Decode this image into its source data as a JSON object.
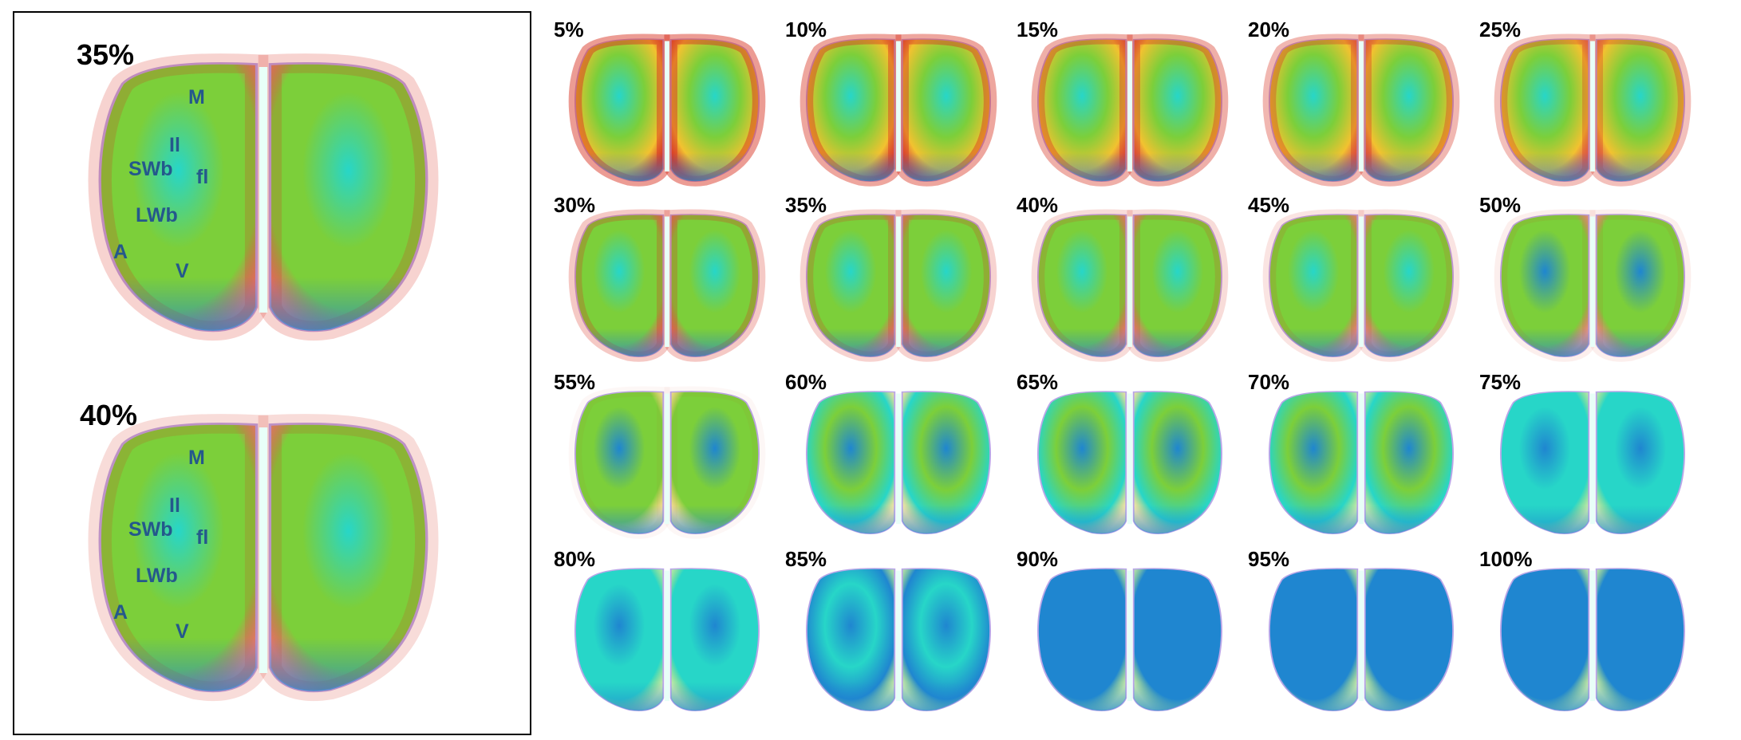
{
  "featured": [
    {
      "label": "35%",
      "intensity": 0.35,
      "regions": [
        "M",
        "Il",
        "SWb",
        "fl",
        "LWb",
        "A",
        "V"
      ]
    },
    {
      "label": "40%",
      "intensity": 0.4,
      "regions": [
        "M",
        "Il",
        "SWb",
        "fl",
        "LWb",
        "A",
        "V"
      ]
    }
  ],
  "thumbnails": [
    {
      "label": "5%",
      "intensity": 0.05
    },
    {
      "label": "10%",
      "intensity": 0.1
    },
    {
      "label": "15%",
      "intensity": 0.15
    },
    {
      "label": "20%",
      "intensity": 0.2
    },
    {
      "label": "25%",
      "intensity": 0.25
    },
    {
      "label": "30%",
      "intensity": 0.3
    },
    {
      "label": "35%",
      "intensity": 0.35
    },
    {
      "label": "40%",
      "intensity": 0.4
    },
    {
      "label": "45%",
      "intensity": 0.45
    },
    {
      "label": "50%",
      "intensity": 0.5
    },
    {
      "label": "55%",
      "intensity": 0.55
    },
    {
      "label": "60%",
      "intensity": 0.6
    },
    {
      "label": "65%",
      "intensity": 0.65
    },
    {
      "label": "70%",
      "intensity": 0.7
    },
    {
      "label": "75%",
      "intensity": 0.75
    },
    {
      "label": "80%",
      "intensity": 0.8
    },
    {
      "label": "85%",
      "intensity": 0.85
    },
    {
      "label": "90%",
      "intensity": 0.9
    },
    {
      "label": "95%",
      "intensity": 0.95
    },
    {
      "label": "100%",
      "intensity": 1.0
    }
  ],
  "colors": {
    "hot": "#d7301f",
    "warm": "#f2c230",
    "mid": "#7ccf3a",
    "cool": "#27d6c8",
    "cold": "#1f86d0",
    "label": "#24588c"
  }
}
